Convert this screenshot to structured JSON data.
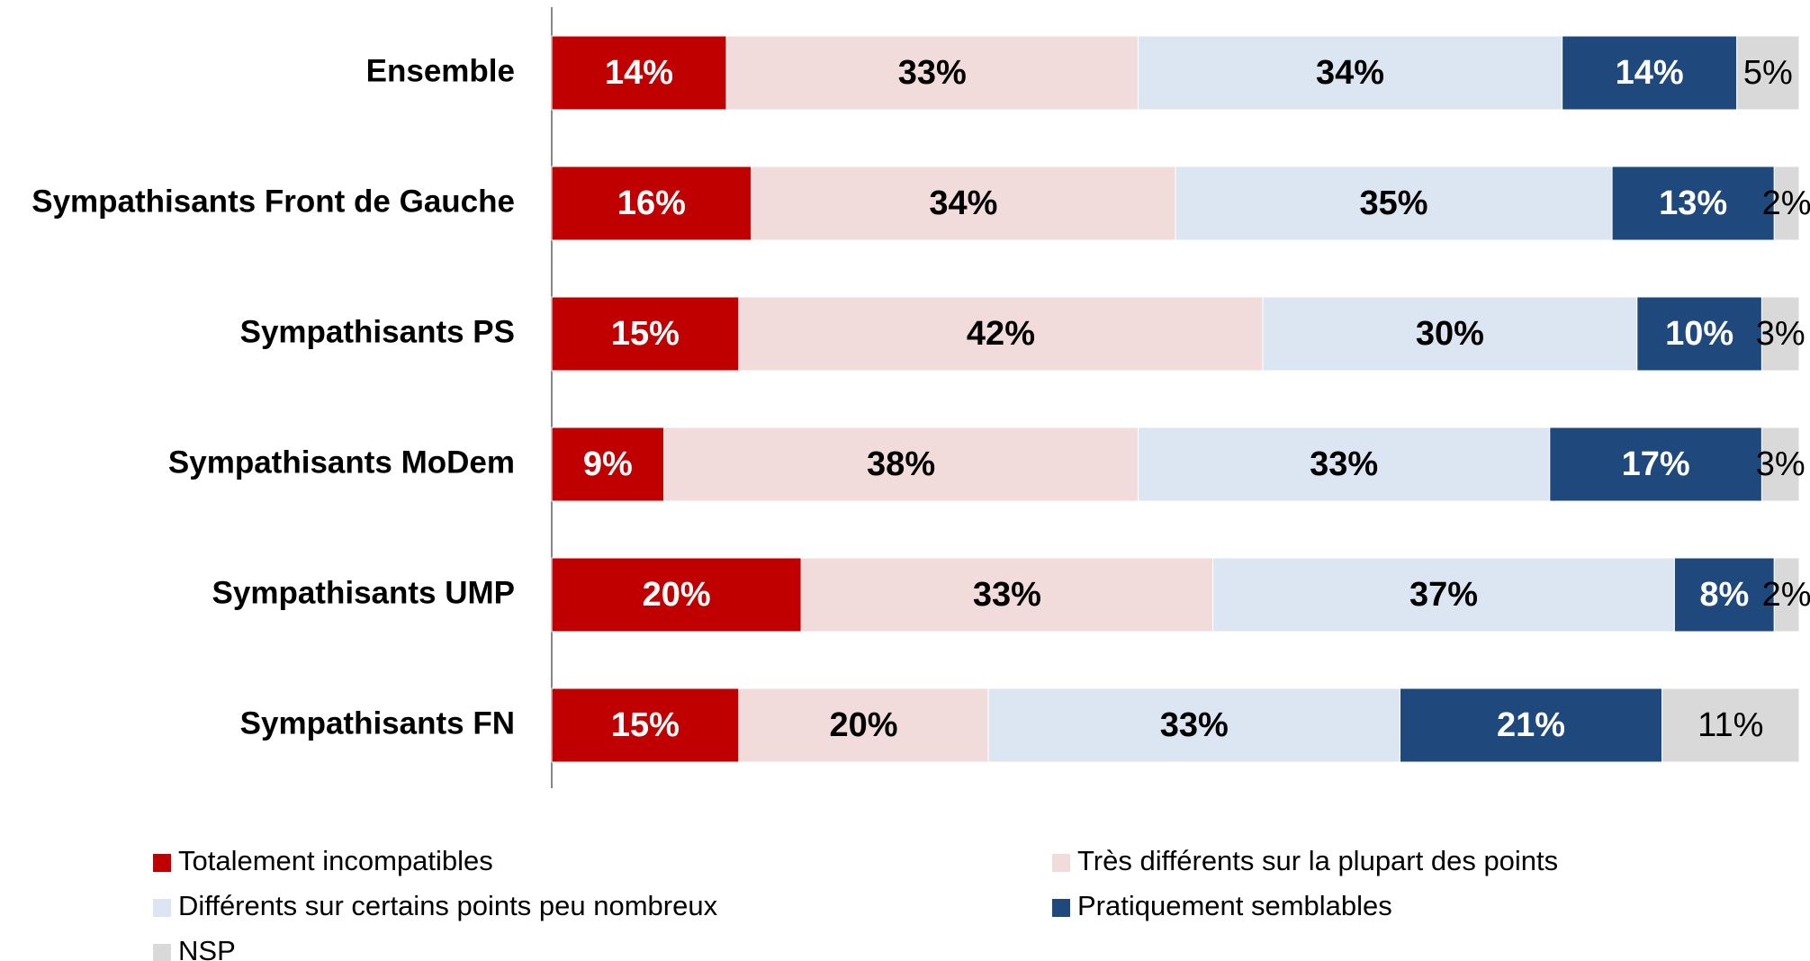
{
  "chart_data": {
    "type": "bar",
    "orientation": "horizontal",
    "stacked": true,
    "categories": [
      "Ensemble",
      "Sympathisants Front de Gauche",
      "Sympathisants PS",
      "Sympathisants MoDem",
      "Sympathisants UMP",
      "Sympathisants FN"
    ],
    "xlim": [
      0,
      100
    ],
    "series": [
      {
        "name": "Totalement incompatibles",
        "color": "#c00000",
        "values": [
          14,
          16,
          15,
          9,
          20,
          15
        ],
        "value_labels": [
          "14%",
          "16%",
          "15%",
          "9%",
          "20%",
          "15%"
        ]
      },
      {
        "name": "Très différents sur la plupart des points",
        "color": "#f2dcdb",
        "values": [
          33,
          34,
          42,
          38,
          33,
          20
        ],
        "value_labels": [
          "33%",
          "34%",
          "42%",
          "38%",
          "33%",
          "20%"
        ]
      },
      {
        "name": "Différents sur certains points peu nombreux",
        "color": "#dce6f2",
        "values": [
          34,
          35,
          30,
          33,
          37,
          33
        ],
        "value_labels": [
          "34%",
          "35%",
          "30%",
          "33%",
          "37%",
          "33%"
        ]
      },
      {
        "name": "Pratiquement semblables",
        "color": "#1f497d",
        "values": [
          14,
          13,
          10,
          17,
          8,
          21
        ],
        "value_labels": [
          "14%",
          "13%",
          "10%",
          "17%",
          "8%",
          "21%"
        ]
      },
      {
        "name": "NSP",
        "color": "#d9d9d9",
        "values": [
          5,
          2,
          3,
          3,
          2,
          11
        ],
        "value_labels": [
          "5%",
          "2%",
          "3%",
          "3%",
          "2%",
          "11%"
        ]
      }
    ]
  }
}
